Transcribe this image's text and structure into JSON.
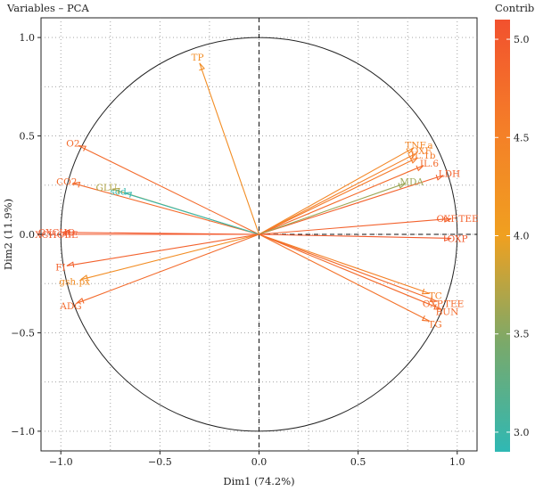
{
  "chart_data": {
    "type": "scatter",
    "title": "Variables – PCA",
    "xlabel": "Dim1 (74.2%)",
    "ylabel": "Dim2 (11.9%)",
    "xlim": [
      -1.1,
      1.1
    ],
    "ylim": [
      -1.1,
      1.1
    ],
    "xticks": [
      -1.0,
      -0.5,
      0.0,
      0.5,
      1.0
    ],
    "yticks": [
      -1.0,
      -0.5,
      0.0,
      0.5,
      1.0
    ],
    "xtick_labels": [
      "−1.0",
      "−0.5",
      "0.0",
      "0.5",
      "1.0"
    ],
    "ytick_labels": [
      "−1.0",
      "−0.5",
      "0.0",
      "0.5",
      "1.0"
    ],
    "grid": "dotted",
    "correlation_circle": true,
    "legend": {
      "title": "Contrib",
      "position": "right",
      "range": [
        2.9,
        5.1
      ],
      "ticks": [
        3.0,
        3.5,
        4.0,
        4.5,
        5.0
      ],
      "tick_labels": [
        "3.0",
        "3.5",
        "4.0",
        "4.5",
        "5.0"
      ],
      "colors": [
        "#2fb8b4",
        "#7aa96a",
        "#f0a020",
        "#f47e28",
        "#f2512e"
      ]
    },
    "variables": [
      {
        "name": "TP",
        "x": -0.3,
        "y": 0.87,
        "contrib": 4.3
      },
      {
        "name": "O2",
        "x": -0.91,
        "y": 0.45,
        "contrib": 4.8
      },
      {
        "name": "CO2",
        "x": -0.94,
        "y": 0.26,
        "contrib": 4.8
      },
      {
        "name": "GLU",
        "x": -0.74,
        "y": 0.23,
        "contrib": 3.7
      },
      {
        "name": "sod",
        "x": -0.68,
        "y": 0.21,
        "contrib": 2.95
      },
      {
        "name": "OXCHO",
        "x": -0.99,
        "y": 0.01,
        "contrib": 5.0
      },
      {
        "name": "XCHOEE",
        "x": -0.99,
        "y": 0.0,
        "contrib": 5.0
      },
      {
        "name": "FI",
        "x": -0.97,
        "y": -0.16,
        "contrib": 4.9
      },
      {
        "name": "gsh.px",
        "x": -0.9,
        "y": -0.23,
        "contrib": 4.3
      },
      {
        "name": "ADG",
        "x": -0.92,
        "y": -0.35,
        "contrib": 4.8
      },
      {
        "name": "TNF.a",
        "x": 0.78,
        "y": 0.44,
        "contrib": 4.4
      },
      {
        "name": "OXF",
        "x": 0.79,
        "y": 0.41,
        "contrib": 4.5
      },
      {
        "name": "IL.1b",
        "x": 0.8,
        "y": 0.39,
        "contrib": 4.6
      },
      {
        "name": "IL.6",
        "x": 0.83,
        "y": 0.35,
        "contrib": 4.8
      },
      {
        "name": "LDH",
        "x": 0.93,
        "y": 0.3,
        "contrib": 4.9
      },
      {
        "name": "MDA",
        "x": 0.74,
        "y": 0.26,
        "contrib": 3.6
      },
      {
        "name": "OXF.TEE",
        "x": 0.97,
        "y": 0.08,
        "contrib": 4.9
      },
      {
        "name": "OXP",
        "x": 0.97,
        "y": -0.02,
        "contrib": 5.0
      },
      {
        "name": "TC",
        "x": 0.86,
        "y": -0.3,
        "contrib": 4.5
      },
      {
        "name": "OXP.TEE",
        "x": 0.9,
        "y": -0.34,
        "contrib": 4.8
      },
      {
        "name": "BUN",
        "x": 0.92,
        "y": -0.38,
        "contrib": 4.8
      },
      {
        "name": "TG",
        "x": 0.86,
        "y": -0.44,
        "contrib": 4.7
      }
    ]
  }
}
